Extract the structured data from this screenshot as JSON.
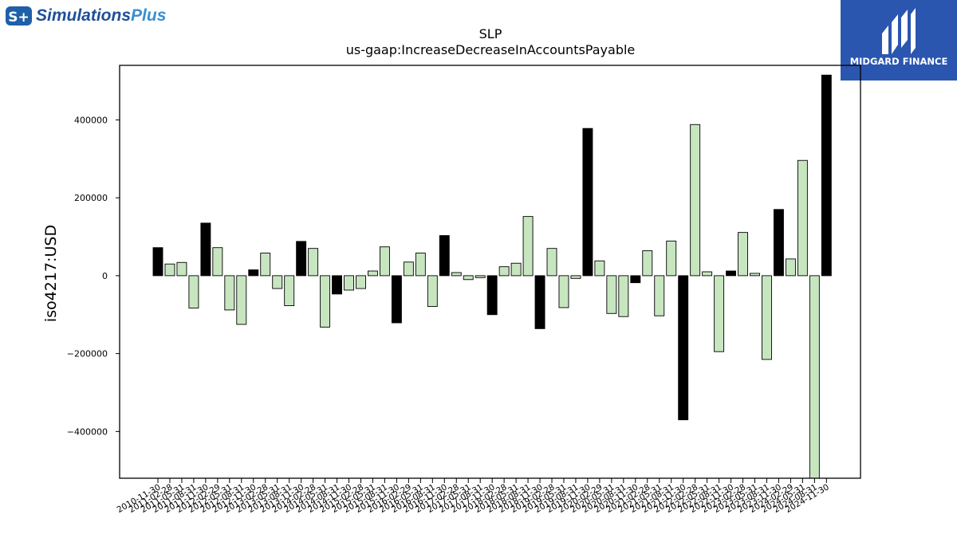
{
  "brand_left": {
    "mark": "S+",
    "name_a": "Simulations",
    "name_b": "Plus",
    "color": "#1f5fa8"
  },
  "brand_right": {
    "name": "MIDGARD FINANCE",
    "bg": "#2b56b0"
  },
  "chart_data": {
    "type": "bar",
    "title": "SLP",
    "subtitle": "us-gaap:IncreaseDecreaseInAccountsPayable",
    "ylabel": "iso4217:USD",
    "xlabel": "",
    "ylim": [
      -520000,
      540000
    ],
    "yticks": [
      -400000,
      -200000,
      0,
      200000,
      400000
    ],
    "colors": {
      "annual": "#000000",
      "quarterly": "#c7e6c0",
      "edge": "#000000"
    },
    "categories": [
      "2010-11-30",
      "2011-02-28",
      "2011-05-31",
      "2011-08-31",
      "2011-11-30",
      "2012-02-29",
      "2012-05-31",
      "2012-08-31",
      "2012-11-30",
      "2013-02-28",
      "2013-05-31",
      "2013-08-31",
      "2013-11-30",
      "2014-02-28",
      "2014-05-31",
      "2014-08-31",
      "2014-11-30",
      "2015-02-28",
      "2015-05-31",
      "2015-08-31",
      "2015-11-30",
      "2016-02-29",
      "2016-05-31",
      "2016-08-31",
      "2016-11-30",
      "2017-02-28",
      "2017-05-31",
      "2017-08-31",
      "2017-11-30",
      "2018-02-28",
      "2018-05-31",
      "2018-08-31",
      "2018-11-30",
      "2019-02-28",
      "2019-05-31",
      "2019-08-31",
      "2019-11-30",
      "2020-02-29",
      "2020-05-31",
      "2020-08-31",
      "2020-11-30",
      "2021-02-28",
      "2021-05-31",
      "2021-08-31",
      "2021-11-30",
      "2022-02-28",
      "2022-05-31",
      "2022-08-31",
      "2022-11-30",
      "2023-02-28",
      "2023-05-31",
      "2023-08-31",
      "2023-11-30",
      "2024-02-29",
      "2024-05-31",
      "2024-08-31",
      "2024-11-30"
    ],
    "values": [
      72000,
      30000,
      34000,
      -83000,
      135000,
      72000,
      -88000,
      -125000,
      15000,
      58000,
      -33000,
      -77000,
      88000,
      70000,
      -132000,
      -47000,
      -37000,
      -33000,
      12000,
      74000,
      -121000,
      35000,
      58000,
      -79000,
      103000,
      8000,
      -10000,
      -5000,
      -100000,
      23000,
      32000,
      152000,
      -136000,
      70000,
      -82000,
      -7000,
      378000,
      38000,
      -97000,
      -105000,
      -18000,
      64000,
      -103000,
      89000,
      -370000,
      388000,
      10000,
      -195000,
      12000,
      111000,
      6000,
      -215000,
      170000,
      43000,
      296000,
      -520000,
      515000
    ],
    "annual": [
      true,
      false,
      false,
      false,
      true,
      false,
      false,
      false,
      true,
      false,
      false,
      false,
      true,
      false,
      false,
      true,
      false,
      false,
      false,
      false,
      true,
      false,
      false,
      false,
      true,
      false,
      false,
      false,
      true,
      false,
      false,
      false,
      true,
      false,
      false,
      false,
      true,
      false,
      false,
      false,
      true,
      false,
      false,
      false,
      true,
      false,
      false,
      false,
      true,
      false,
      false,
      false,
      true,
      false,
      false,
      false,
      true
    ]
  }
}
